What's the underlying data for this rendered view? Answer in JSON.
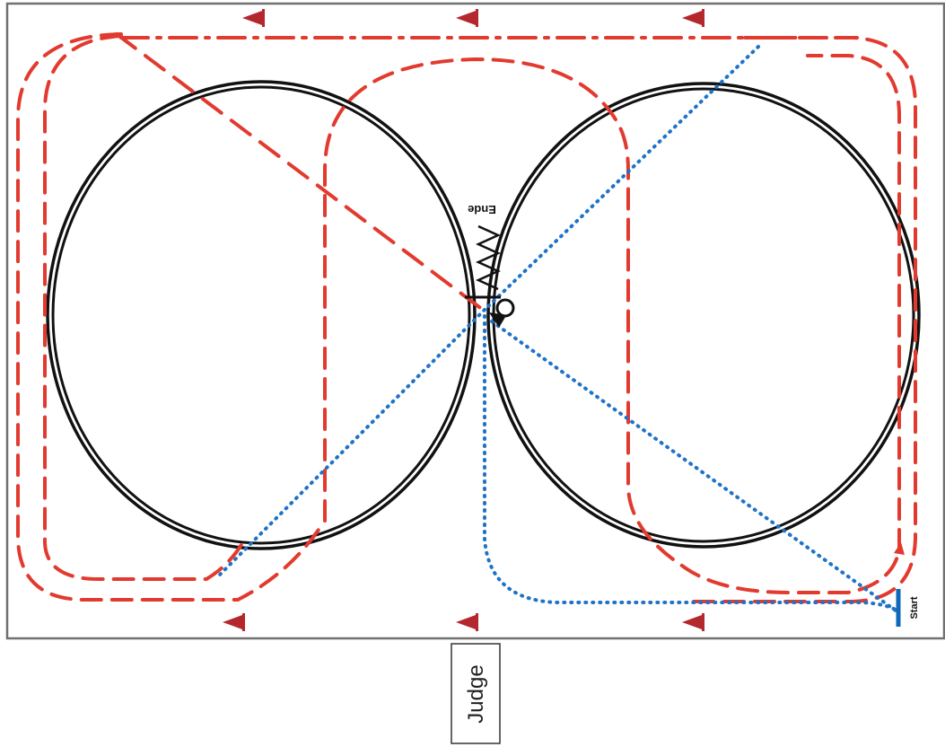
{
  "diagram": {
    "labels": {
      "start": "Start",
      "end": "Ende",
      "judge": "Judge"
    },
    "colors": {
      "arena_border": "#707070",
      "circle_track": "#111111",
      "red_path": "#e23a2e",
      "blue_path": "#1f73c7",
      "blue_marker": "#1268b8",
      "cone": "#b3272d"
    },
    "icons": {
      "cone": "pylon-cone-icon",
      "halt": "halt-circle-icon",
      "zigzag": "zigzag-serpentine-icon"
    },
    "cones_top_count": 3,
    "cones_bottom_count": 3
  }
}
